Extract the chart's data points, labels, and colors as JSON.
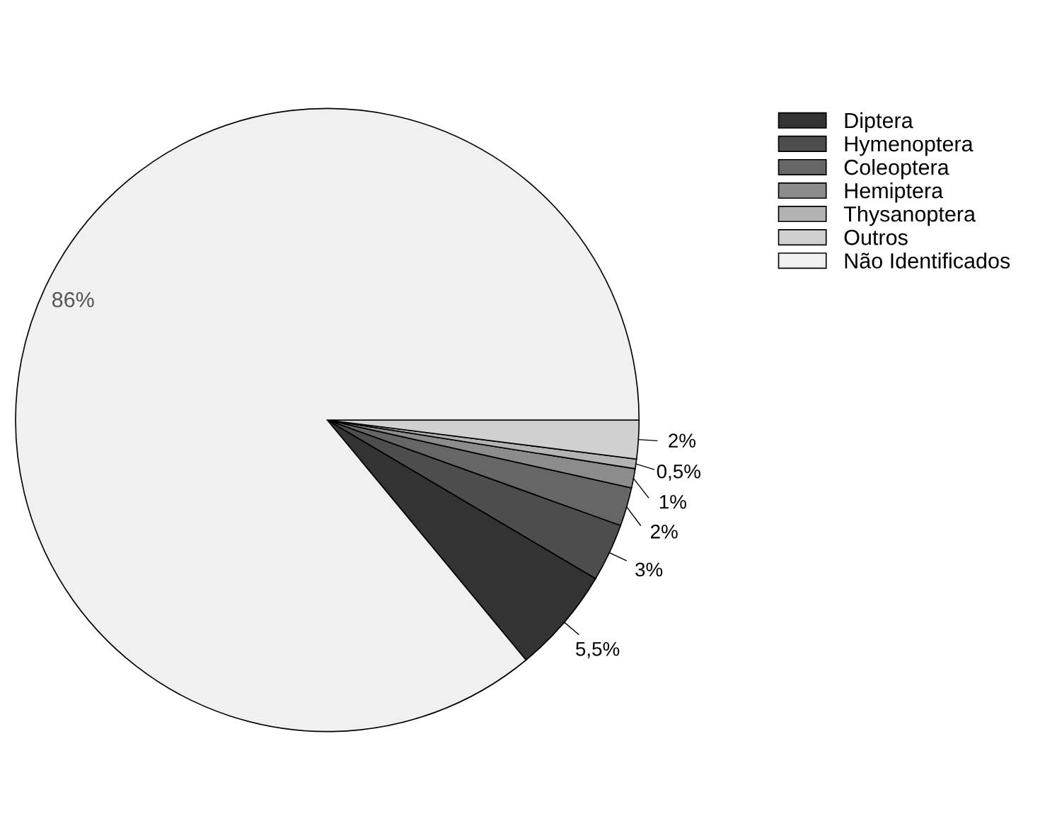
{
  "chart_data": {
    "type": "pie",
    "categories": [
      "Diptera",
      "Hymenoptera",
      "Coleoptera",
      "Hemiptera",
      "Thysanoptera",
      "Outros",
      "Não Identificados"
    ],
    "values": [
      5.5,
      3,
      2,
      1,
      0.5,
      2,
      86
    ],
    "colors": [
      "#333333",
      "#4d4d4d",
      "#666666",
      "#8c8c8c",
      "#b3b3b3",
      "#d0d0d0",
      "#f0f0f0"
    ],
    "value_labels": [
      "5,5%",
      "3%",
      "2%",
      "1%",
      "0,5%",
      "2%",
      "86%"
    ],
    "legend": "top right"
  }
}
